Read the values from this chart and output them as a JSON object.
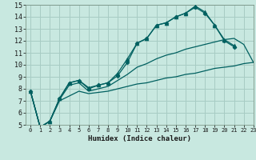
{
  "xlabel": "Humidex (Indice chaleur)",
  "xlim": [
    -0.5,
    23
  ],
  "ylim": [
    5,
    15
  ],
  "bg_color": "#c8e8e0",
  "grid_color": "#a8ccc4",
  "line_color": "#006060",
  "series": [
    {
      "x": [
        0,
        1,
        2,
        3,
        4,
        5,
        6,
        7,
        8,
        9,
        10,
        11,
        12,
        13,
        14,
        15,
        16,
        17,
        18,
        19,
        20,
        21
      ],
      "y": [
        7.8,
        4.8,
        5.3,
        7.2,
        8.5,
        8.7,
        8.1,
        8.3,
        8.5,
        9.3,
        10.5,
        11.8,
        12.2,
        13.3,
        13.5,
        14.0,
        14.3,
        14.9,
        14.4,
        13.3,
        12.1,
        11.6
      ],
      "marker": "^",
      "markersize": 3.5
    },
    {
      "x": [
        0,
        1,
        2,
        3,
        4,
        5,
        6,
        7,
        8,
        9,
        10,
        11,
        12,
        13,
        14,
        15,
        16,
        17,
        18,
        19,
        20,
        21
      ],
      "y": [
        7.8,
        4.8,
        5.3,
        7.2,
        8.5,
        8.7,
        8.0,
        8.3,
        8.5,
        9.1,
        10.2,
        11.8,
        12.2,
        13.3,
        13.5,
        14.0,
        14.3,
        14.8,
        14.3,
        13.3,
        12.0,
        11.5
      ],
      "marker": "D",
      "markersize": 2.5
    },
    {
      "x": [
        0,
        1,
        2,
        3,
        4,
        5,
        6,
        7,
        8,
        9,
        10,
        11,
        12,
        13,
        14,
        15,
        16,
        17,
        18,
        19,
        20,
        21,
        22,
        23
      ],
      "y": [
        7.8,
        4.8,
        5.3,
        7.1,
        8.3,
        8.5,
        7.8,
        8.0,
        8.2,
        8.7,
        9.2,
        9.8,
        10.1,
        10.5,
        10.8,
        11.0,
        11.3,
        11.5,
        11.7,
        11.9,
        12.1,
        12.2,
        11.7,
        10.2
      ],
      "marker": null,
      "markersize": 0
    },
    {
      "x": [
        0,
        1,
        2,
        3,
        4,
        5,
        6,
        7,
        8,
        9,
        10,
        11,
        12,
        13,
        14,
        15,
        16,
        17,
        18,
        19,
        20,
        21,
        22,
        23
      ],
      "y": [
        7.8,
        4.8,
        5.3,
        7.0,
        7.4,
        7.8,
        7.6,
        7.7,
        7.8,
        8.0,
        8.2,
        8.4,
        8.5,
        8.7,
        8.9,
        9.0,
        9.2,
        9.3,
        9.5,
        9.7,
        9.8,
        9.9,
        10.1,
        10.2
      ],
      "marker": null,
      "markersize": 0
    }
  ]
}
